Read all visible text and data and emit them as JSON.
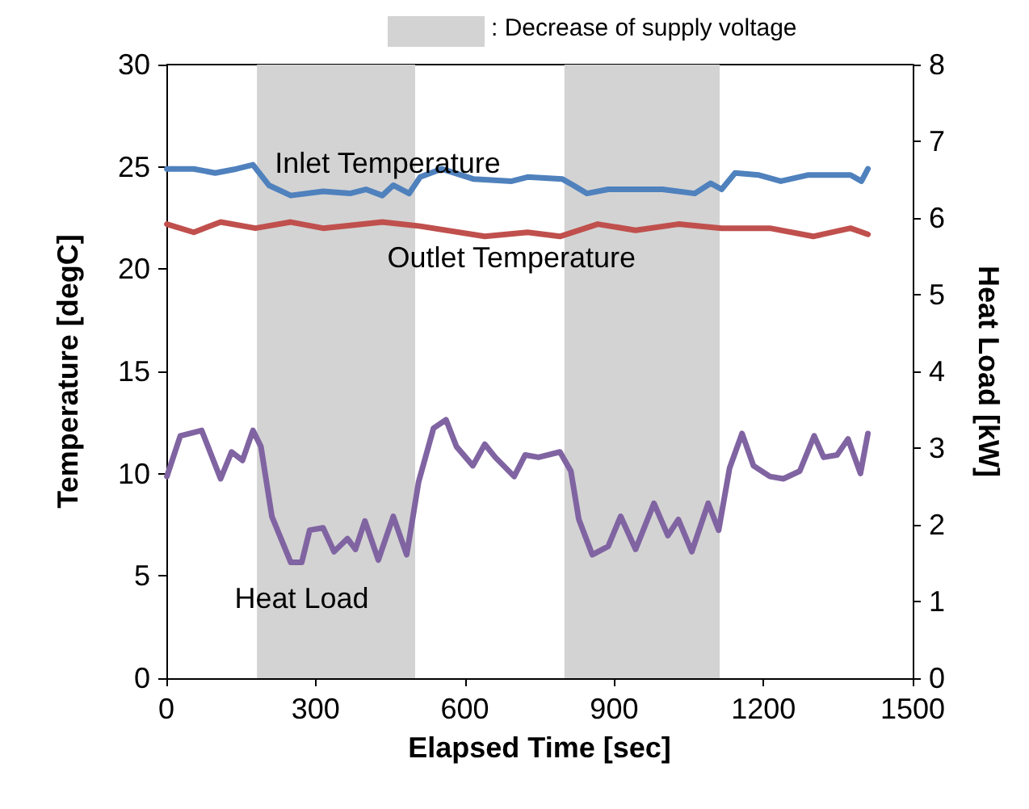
{
  "chart_data": {
    "type": "line",
    "xlabel": "Elapsed Time [sec]",
    "ylabel": "Temperature [degC]",
    "y2label": "Heat Load [kW]",
    "xlim": [
      0,
      1500
    ],
    "xticks": [
      0,
      300,
      600,
      900,
      1200,
      1500
    ],
    "ylim": [
      0,
      30
    ],
    "yticks": [
      0,
      5,
      10,
      15,
      20,
      25,
      30
    ],
    "y2lim": [
      0,
      8
    ],
    "y2ticks": [
      0,
      1,
      2,
      3,
      4,
      5,
      6,
      7,
      8
    ],
    "grid": false,
    "legend": "top",
    "marker": "none",
    "line_style": "solid",
    "bands": [
      {
        "axis": "x",
        "from": 182,
        "to": 500,
        "label": ": Decrease of supply voltage",
        "color": "#d3d3d3"
      },
      {
        "axis": "x",
        "from": 800,
        "to": 1112,
        "color": "#d3d3d3"
      }
    ],
    "series": [
      {
        "name": "Inlet Temperature",
        "color": "#4f81bd",
        "x": [
          1,
          55,
          98,
          141,
          174,
          206,
          250,
          315,
          369,
          401,
          434,
          456,
          488,
          510,
          553,
          618,
          694,
          726,
          796,
          818,
          845,
          888,
          943,
          997,
          1062,
          1094,
          1116,
          1143,
          1191,
          1235,
          1289,
          1375,
          1397,
          1410
        ],
        "values": [
          24.9,
          24.9,
          24.7,
          24.9,
          25.1,
          24.1,
          23.6,
          23.8,
          23.7,
          23.9,
          23.6,
          24.1,
          23.7,
          24.5,
          24.9,
          24.4,
          24.3,
          24.5,
          24.4,
          24.1,
          23.7,
          23.9,
          23.9,
          23.9,
          23.7,
          24.2,
          23.9,
          24.7,
          24.6,
          24.3,
          24.6,
          24.6,
          24.3,
          24.9
        ]
      },
      {
        "name": "Outlet Temperature",
        "color": "#c0504d",
        "x": [
          1,
          55,
          109,
          179,
          250,
          315,
          434,
          510,
          640,
          726,
          791,
          867,
          943,
          1029,
          1116,
          1213,
          1300,
          1375,
          1410
        ],
        "values": [
          22.2,
          21.8,
          22.3,
          22.0,
          22.3,
          22.0,
          22.3,
          22.1,
          21.6,
          21.8,
          21.6,
          22.2,
          21.9,
          22.2,
          22.0,
          22.0,
          21.6,
          22.0,
          21.7
        ]
      },
      {
        "name": "Heat Load",
        "color": "#8064a2",
        "axis": "y2",
        "x": [
          1,
          28,
          71,
          109,
          131,
          153,
          174,
          190,
          212,
          250,
          272,
          288,
          315,
          337,
          364,
          380,
          399,
          426,
          456,
          483,
          507,
          537,
          562,
          583,
          616,
          640,
          661,
          699,
          721,
          748,
          791,
          813,
          829,
          856,
          888,
          913,
          943,
          980,
          1008,
          1029,
          1056,
          1089,
          1110,
          1132,
          1157,
          1180,
          1213,
          1240,
          1273,
          1302,
          1321,
          1348,
          1370,
          1395,
          1410
        ],
        "values": [
          2.63,
          3.16,
          3.23,
          2.6,
          2.95,
          2.84,
          3.23,
          3.02,
          2.11,
          1.51,
          1.51,
          1.93,
          1.96,
          1.65,
          1.82,
          1.68,
          2.05,
          1.54,
          2.11,
          1.61,
          2.56,
          3.26,
          3.37,
          3.02,
          2.77,
          3.05,
          2.88,
          2.63,
          2.91,
          2.88,
          2.95,
          2.7,
          2.07,
          1.61,
          1.72,
          2.11,
          1.68,
          2.28,
          1.86,
          2.07,
          1.65,
          2.28,
          1.93,
          2.74,
          3.19,
          2.77,
          2.63,
          2.6,
          2.7,
          3.16,
          2.88,
          2.91,
          3.12,
          2.67,
          3.19
        ]
      }
    ]
  }
}
